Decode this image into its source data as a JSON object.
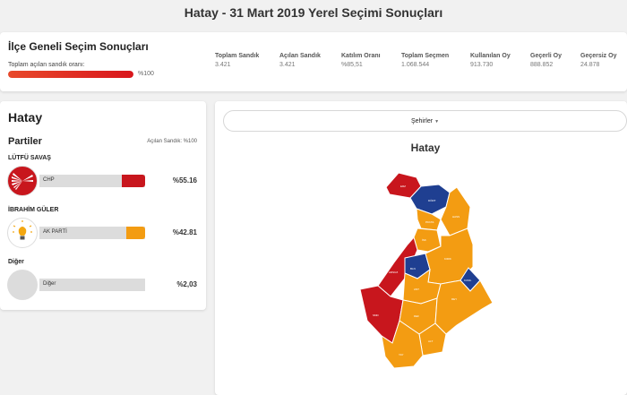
{
  "page": {
    "title": "Hatay - 31 Mart 2019 Yerel Seçimi Sonuçları"
  },
  "summary": {
    "heading": "İlçe Geneli Seçim Sonuçları",
    "progress_label": "Toplam açılan sandık oranı:",
    "progress_value": 100,
    "progress_text": "%100",
    "stats": [
      {
        "label": "Toplam Sandık",
        "value": "3.421"
      },
      {
        "label": "Açılan Sandık",
        "value": "3.421"
      },
      {
        "label": "Katılım Oranı",
        "value": "%85,51"
      },
      {
        "label": "Toplam Seçmen",
        "value": "1.068.544"
      },
      {
        "label": "Kullanılan Oy",
        "value": "913.730"
      },
      {
        "label": "Geçerli Oy",
        "value": "888.852"
      },
      {
        "label": "Geçersiz Oy",
        "value": "24.878"
      }
    ]
  },
  "parties_panel": {
    "province": "Hatay",
    "title": "Partiler",
    "opened": "Açılan Sandık: %100",
    "candidates": [
      {
        "name": "LÜTFÜ SAVAŞ",
        "party": "CHP",
        "percent": "%55.16",
        "share": 55.16,
        "color": "#c8161d",
        "logo": "chp-logo-icon"
      },
      {
        "name": "İBRAHİM GÜLER",
        "party": "AK PARTİ",
        "percent": "%42.81",
        "share": 42.81,
        "color": "#f39c12",
        "logo": "akparti-logo-icon"
      },
      {
        "name": "Diğer",
        "party": "Diğer",
        "percent": "%2,03",
        "share": 2.03,
        "color": "#cfcfcf",
        "logo": "generic-logo-icon"
      }
    ]
  },
  "map": {
    "dropdown": "Şehirler",
    "title": "Hatay",
    "colors": {
      "chp": "#c8161d",
      "akp": "#f39c12",
      "mhp": "#1f3f91"
    },
    "districts": [
      {
        "label": "ERZ",
        "party": "chp"
      },
      {
        "label": "DÖRT",
        "party": "mhp"
      },
      {
        "label": "HASS",
        "party": "akp"
      },
      {
        "label": "PAYAS",
        "party": "akp"
      },
      {
        "label": "İSK",
        "party": "akp"
      },
      {
        "label": "ARSUZ",
        "party": "chp"
      },
      {
        "label": "BLN",
        "party": "mhp"
      },
      {
        "label": "KIRIK",
        "party": "akp"
      },
      {
        "label": "KUML",
        "party": "mhp"
      },
      {
        "label": "ANT",
        "party": "akp"
      },
      {
        "label": "SMD",
        "party": "chp"
      },
      {
        "label": "DEF",
        "party": "akp"
      },
      {
        "label": "ALT",
        "party": "akp"
      },
      {
        "label": "REY",
        "party": "akp"
      },
      {
        "label": "YAY",
        "party": "akp"
      }
    ]
  }
}
